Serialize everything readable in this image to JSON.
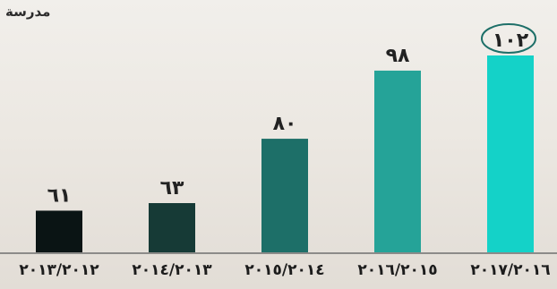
{
  "chart_data": {
    "type": "bar",
    "unit_label": "مدرسة",
    "categories": [
      "٢٠١٣/٢٠١٢",
      "٢٠١٤/٢٠١٣",
      "٢٠١٥/٢٠١٤",
      "٢٠١٦/٢٠١٥",
      "٢٠١٧/٢٠١٦"
    ],
    "values": [
      61,
      63,
      80,
      98,
      102
    ],
    "value_labels": [
      "٦١",
      "٦٣",
      "٨٠",
      "٩٨",
      "١٠٢"
    ],
    "colors": [
      "#0a1414",
      "#163a36",
      "#1d6f68",
      "#25a398",
      "#14d2c8"
    ],
    "highlight_index": 4,
    "highlight_color": "#1d6f68",
    "axis_color": "#6f6f6f",
    "ylim": [
      50,
      105
    ],
    "grid": false
  }
}
